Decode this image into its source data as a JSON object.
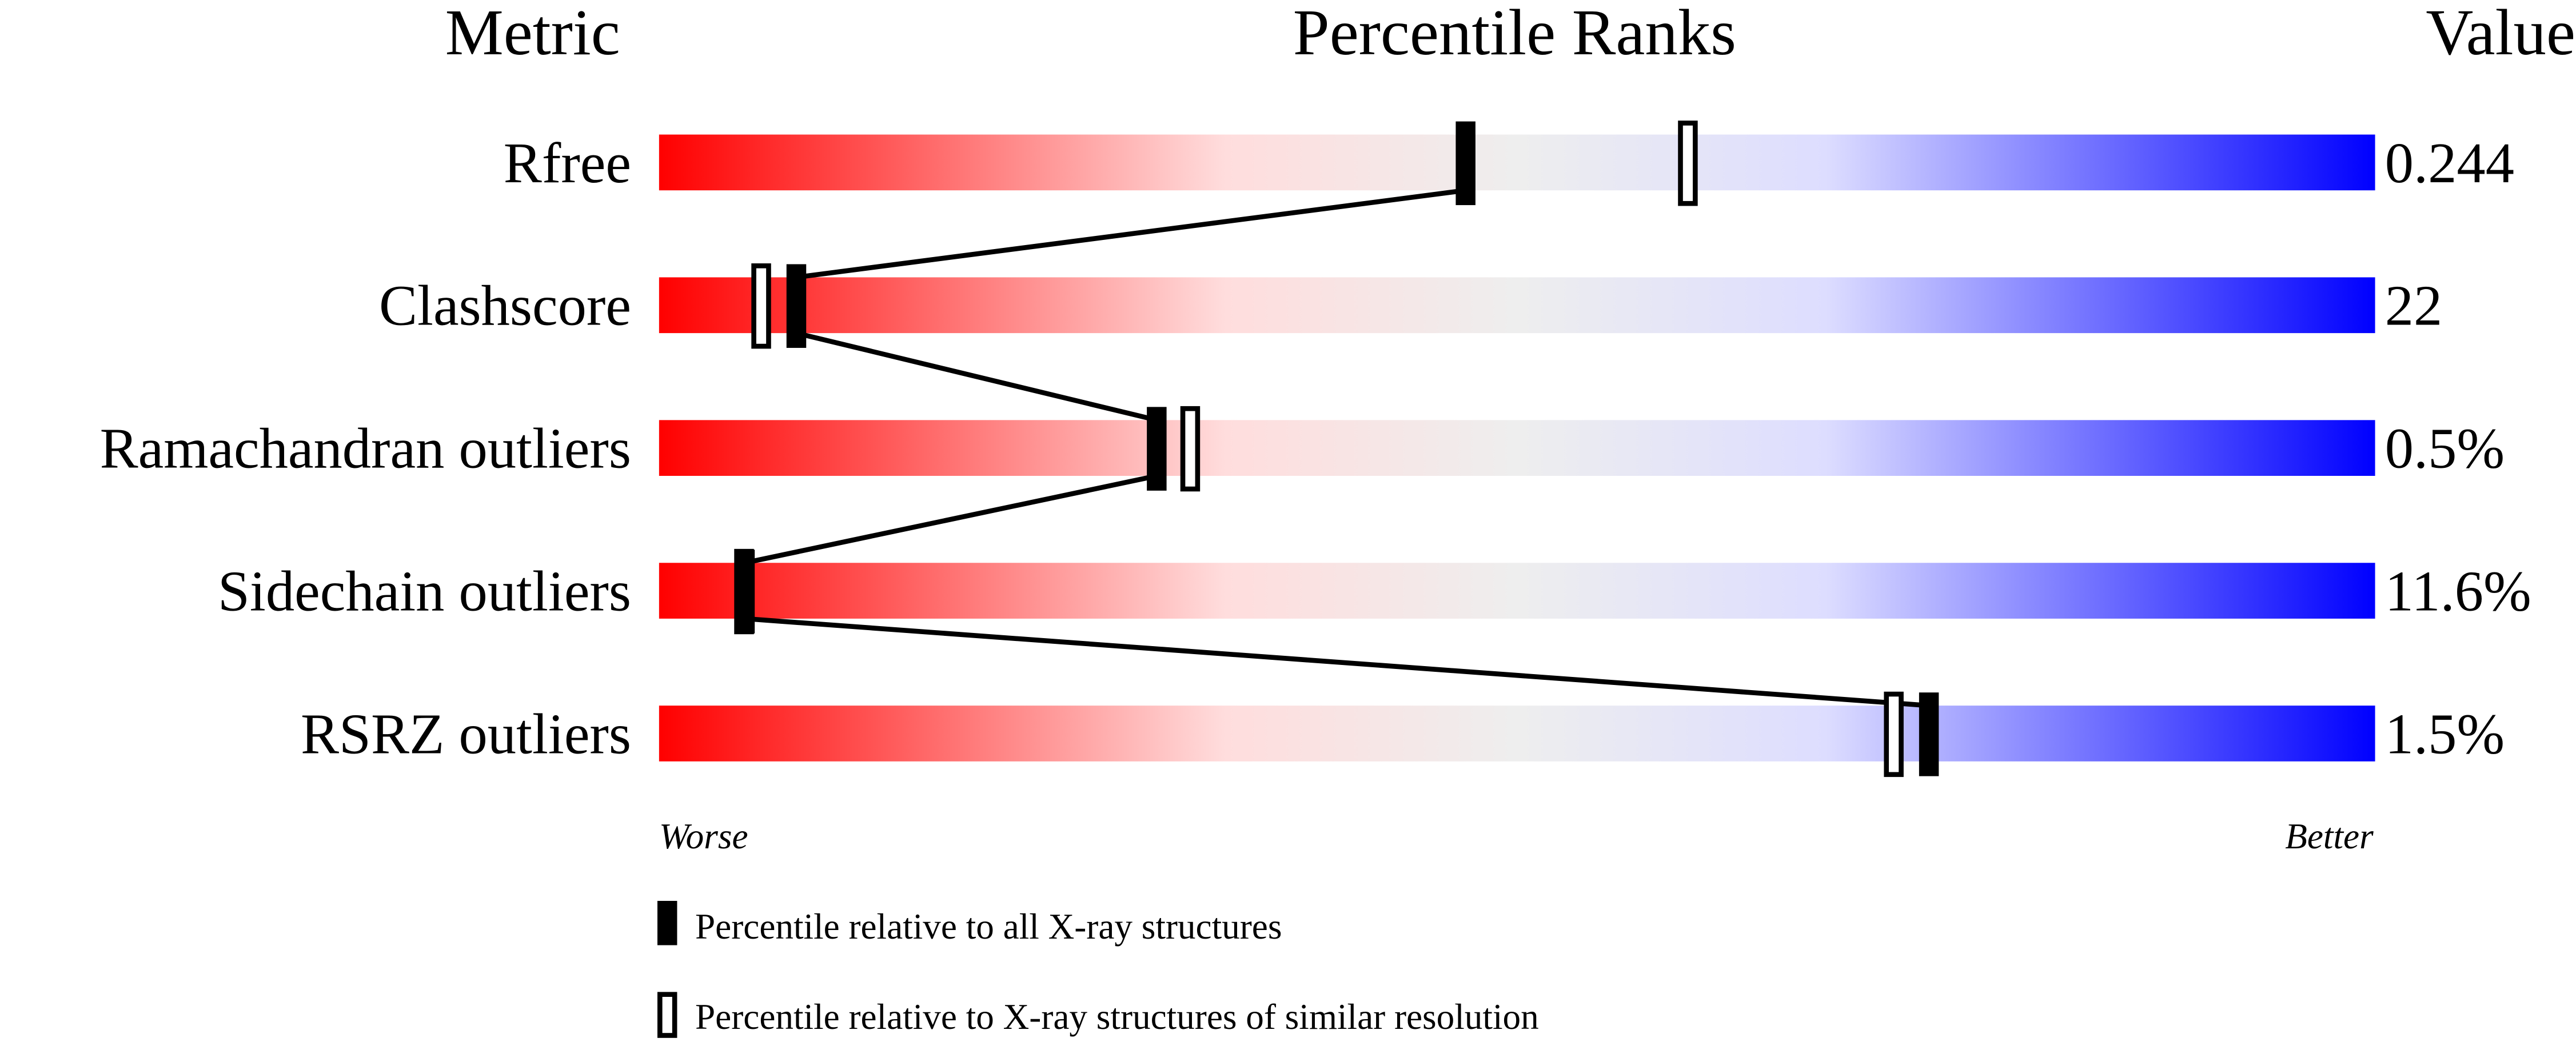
{
  "chart_data": {
    "type": "percentile-slider",
    "headers": {
      "metric": "Metric",
      "percentile": "Percentile Ranks",
      "value": "Value"
    },
    "xlim": [
      0,
      100
    ],
    "axis_labels": {
      "left": "Worse",
      "right": "Better"
    },
    "gradient_colors": [
      "#ff0000",
      "#ffdddd",
      "#eeeeee",
      "#ddddff",
      "#0000ff"
    ],
    "metrics": [
      {
        "name": "Rfree",
        "value": "0.244",
        "percentile_all": 47,
        "percentile_similar": 60
      },
      {
        "name": "Clashscore",
        "value": "22",
        "percentile_all": 8,
        "percentile_similar": 6
      },
      {
        "name": "Ramachandran outliers",
        "value": "0.5%",
        "percentile_all": 29,
        "percentile_similar": 31
      },
      {
        "name": "Sidechain outliers",
        "value": "11.6%",
        "percentile_all": 5,
        "percentile_similar": 5
      },
      {
        "name": "RSRZ outliers",
        "value": "1.5%",
        "percentile_all": 74,
        "percentile_similar": 72
      }
    ],
    "legend": [
      {
        "marker": "filled",
        "label": "Percentile relative to all X-ray structures"
      },
      {
        "marker": "hollow",
        "label": "Percentile relative to X-ray structures of similar resolution"
      }
    ]
  }
}
